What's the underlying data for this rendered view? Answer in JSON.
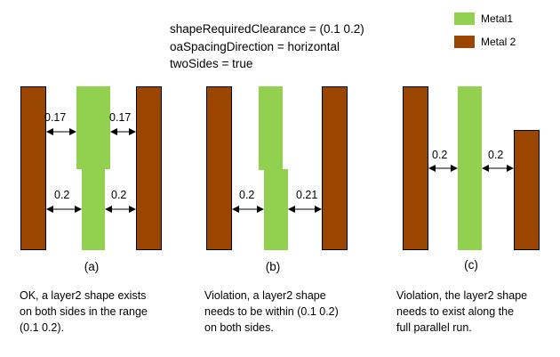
{
  "rule_text": {
    "line1": "shapeRequiredClearance = (0.1 0.2)",
    "line2": "oaSpacingDirection = horizontal",
    "line3": "twoSides = true"
  },
  "legend": {
    "metal1": {
      "label": "Metal1",
      "color": "#92d050"
    },
    "metal2": {
      "label": "Metal 2",
      "color": "#9a4500"
    }
  },
  "panels": {
    "a": {
      "label": "(a)",
      "dims": [
        "0.17",
        "0.17",
        "0.2",
        "0.2"
      ],
      "caption": "OK, a layer2 shape exists on both sides in the range (0.1 0.2)."
    },
    "b": {
      "label": "(b)",
      "dims": [
        "0.2",
        "0.21"
      ],
      "caption": "Violation, a layer2 shape needs to be within (0.1 0.2) on both sides."
    },
    "c": {
      "label": "(c)",
      "dims": [
        "0.2",
        "0.2"
      ],
      "caption": "Violation, the layer2 shape needs to exist along the full parallel run."
    }
  }
}
